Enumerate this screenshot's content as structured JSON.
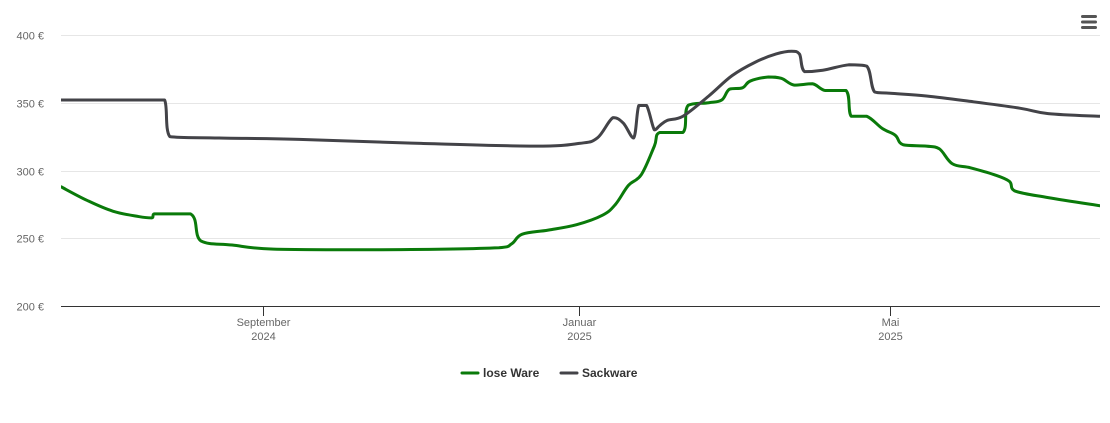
{
  "chart_data": {
    "type": "line",
    "title": "",
    "xlabel": "",
    "ylabel": "",
    "grid": true,
    "legend_position": "bottom-center",
    "ylim": [
      200,
      400
    ],
    "xlim": [
      "2024-06-15",
      "2025-07-21"
    ],
    "y_ticks": [
      {
        "value": 200,
        "label": "200 €"
      },
      {
        "value": 250,
        "label": "250 €"
      },
      {
        "value": 300,
        "label": "300 €"
      },
      {
        "value": 350,
        "label": "350 €"
      },
      {
        "value": 400,
        "label": "400 €"
      }
    ],
    "x_ticks": [
      {
        "date": "2024-09-01",
        "label": [
          "September",
          "2024"
        ]
      },
      {
        "date": "2025-01-01",
        "label": [
          "Januar",
          "2025"
        ]
      },
      {
        "date": "2025-05-01",
        "label": [
          "Mai",
          "2025"
        ]
      }
    ],
    "series": [
      {
        "name": "lose Ware",
        "color": "#0a7a0a",
        "points": [
          [
            "2024-06-15",
            288
          ],
          [
            "2024-06-25",
            278
          ],
          [
            "2024-07-05",
            270
          ],
          [
            "2024-07-15",
            266
          ],
          [
            "2024-07-20",
            265
          ],
          [
            "2024-07-21",
            268
          ],
          [
            "2024-08-04",
            268
          ],
          [
            "2024-08-08",
            248
          ],
          [
            "2024-08-20",
            245
          ],
          [
            "2024-09-05",
            242
          ],
          [
            "2024-10-15",
            241.5
          ],
          [
            "2024-12-01",
            243
          ],
          [
            "2024-12-06",
            246
          ],
          [
            "2024-12-10",
            253
          ],
          [
            "2024-12-20",
            256
          ],
          [
            "2024-12-31",
            260
          ],
          [
            "2025-01-10",
            267
          ],
          [
            "2025-01-15",
            275
          ],
          [
            "2025-01-20",
            289
          ],
          [
            "2025-01-25",
            297
          ],
          [
            "2025-01-30",
            318
          ],
          [
            "2025-02-01",
            328
          ],
          [
            "2025-02-10",
            328
          ],
          [
            "2025-02-12",
            348
          ],
          [
            "2025-02-20",
            350
          ],
          [
            "2025-02-25",
            352
          ],
          [
            "2025-02-28",
            360
          ],
          [
            "2025-03-05",
            361
          ],
          [
            "2025-03-08",
            366
          ],
          [
            "2025-03-15",
            369
          ],
          [
            "2025-03-20",
            368
          ],
          [
            "2025-03-25",
            363
          ],
          [
            "2025-04-01",
            364
          ],
          [
            "2025-04-06",
            359
          ],
          [
            "2025-04-14",
            359
          ],
          [
            "2025-04-16",
            340
          ],
          [
            "2025-04-22",
            340
          ],
          [
            "2025-04-28",
            331
          ],
          [
            "2025-05-03",
            326
          ],
          [
            "2025-05-06",
            319
          ],
          [
            "2025-05-15",
            318
          ],
          [
            "2025-05-20",
            316
          ],
          [
            "2025-05-25",
            305
          ],
          [
            "2025-06-01",
            302
          ],
          [
            "2025-06-10",
            297
          ],
          [
            "2025-06-16",
            292
          ],
          [
            "2025-06-18",
            285
          ],
          [
            "2025-07-01",
            280
          ],
          [
            "2025-07-21",
            274
          ]
        ]
      },
      {
        "name": "Sackware",
        "color": "#434348",
        "points": [
          [
            "2024-06-15",
            352
          ],
          [
            "2024-07-20",
            352
          ],
          [
            "2024-07-25",
            352
          ],
          [
            "2024-07-27",
            325
          ],
          [
            "2024-08-15",
            324
          ],
          [
            "2024-09-15",
            323
          ],
          [
            "2024-11-01",
            320
          ],
          [
            "2024-12-15",
            318
          ],
          [
            "2025-01-01",
            320
          ],
          [
            "2025-01-08",
            324
          ],
          [
            "2025-01-14",
            339
          ],
          [
            "2025-01-18",
            335
          ],
          [
            "2025-01-22",
            324
          ],
          [
            "2025-01-24",
            348
          ],
          [
            "2025-01-27",
            348
          ],
          [
            "2025-01-30",
            330
          ],
          [
            "2025-02-01",
            333
          ],
          [
            "2025-02-04",
            337
          ],
          [
            "2025-02-10",
            340
          ],
          [
            "2025-02-20",
            355
          ],
          [
            "2025-03-01",
            370
          ],
          [
            "2025-03-10",
            380
          ],
          [
            "2025-03-18",
            386
          ],
          [
            "2025-03-24",
            388
          ],
          [
            "2025-03-27",
            386
          ],
          [
            "2025-03-29",
            373
          ],
          [
            "2025-04-05",
            374
          ],
          [
            "2025-04-15",
            378
          ],
          [
            "2025-04-22",
            377
          ],
          [
            "2025-04-25",
            358
          ],
          [
            "2025-05-01",
            357
          ],
          [
            "2025-05-15",
            355
          ],
          [
            "2025-06-01",
            351
          ],
          [
            "2025-06-20",
            346
          ],
          [
            "2025-07-01",
            342
          ],
          [
            "2025-07-21",
            340
          ]
        ]
      }
    ]
  },
  "toolbar": {
    "menu_icon": "hamburger-menu-icon"
  },
  "legend": {
    "items": [
      {
        "label": "lose Ware",
        "color": "#0a7a0a"
      },
      {
        "label": "Sackware",
        "color": "#434348"
      }
    ]
  },
  "style": {
    "grid_color": "#e6e6e6",
    "axis_color": "#333333",
    "tick_text_color": "#666666"
  }
}
